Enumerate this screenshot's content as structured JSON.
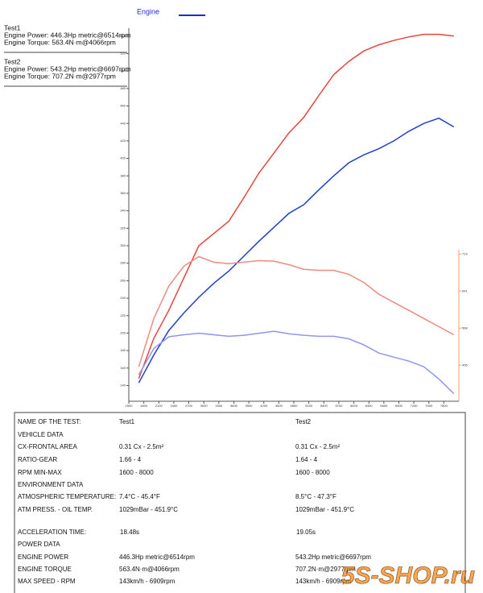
{
  "chart_data": {
    "type": "line",
    "legend_label": "Engine",
    "legend_color": "#1a2ed6",
    "x": [
      1700,
      2000,
      2300,
      2600,
      2900,
      3200,
      3500,
      3800,
      4100,
      4400,
      4700,
      5000,
      5300,
      5600,
      5900,
      6200,
      6500,
      6800,
      7100,
      7400,
      7700,
      8000
    ],
    "xlim": [
      1500,
      8100
    ],
    "xticks": [
      1500,
      1800,
      2100,
      2400,
      2700,
      3000,
      3300,
      3600,
      3900,
      4200,
      4500,
      4800,
      5100,
      5400,
      5700,
      6000,
      6300,
      6600,
      6900,
      7200,
      7500,
      7800
    ],
    "ylim": [
      122,
      549
    ],
    "yticks": [
      140,
      160,
      180,
      200,
      220,
      240,
      260,
      280,
      300,
      320,
      340,
      360,
      380,
      400,
      420,
      440,
      460,
      480,
      500,
      520,
      540
    ],
    "y2lim": [
      424,
      1159
    ],
    "y2ticks": [
      495,
      568,
      641,
      714
    ],
    "series": [
      {
        "color": "#e8453c",
        "values": [
          148,
          194,
          226,
          263,
          300,
          314,
          328,
          355,
          383,
          406,
          429,
          447,
          472,
          496,
          511,
          523,
          530,
          535,
          539,
          542,
          542,
          540
        ]
      },
      {
        "color": "#1f3fd0",
        "values": [
          143,
          175,
          203,
          223,
          241,
          257,
          271,
          288,
          305,
          321,
          337,
          347,
          364,
          380,
          395,
          404,
          411,
          420,
          431,
          440,
          446,
          436
        ]
      },
      {
        "color": "#f08a80",
        "axis": "y2",
        "values": [
          492,
          587,
          651,
          690,
          709,
          698,
          695,
          698,
          701,
          700,
          693,
          684,
          682,
          682,
          674,
          658,
          635,
          619,
          603,
          587,
          571,
          555
        ]
      },
      {
        "color": "#8e96f0",
        "axis": "y2",
        "values": [
          476,
          528,
          551,
          555,
          558,
          555,
          552,
          554,
          558,
          562,
          557,
          554,
          552,
          552,
          547,
          535,
          519,
          511,
          503,
          492,
          468,
          439
        ]
      }
    ]
  },
  "summary": [
    {
      "title": "Test1",
      "color": "#1a2ed6",
      "lines": [
        "Engine Power: 446.3Hp metric@6514rpm",
        "Engine Torque: 563.4N·m@4066rpm"
      ]
    },
    {
      "title": "Test2",
      "color": "#e8302a",
      "lines": [
        "Engine Power: 543.2Hp metric@6697rpm",
        "Engine Torque: 707.2N·m@2977rpm"
      ]
    }
  ],
  "table": {
    "rows": [
      [
        "NAME OF THE TEST:",
        "Test1",
        "Test2"
      ],
      [
        "VEHICLE DATA"
      ],
      [
        "CX-FRONTAL AREA",
        "0.31 Cx - 2.5m²",
        "0.31 Cx - 2.5m²"
      ],
      [
        "RATIO-GEAR",
        "1.66 - 4",
        "1.64 - 4"
      ],
      [
        "RPM MIN-MAX",
        "1600 - 8000",
        "1600 - 8000"
      ],
      [
        "ENVIRONMENT DATA"
      ],
      [
        "ATMOSPHERIC TEMPERATURE:",
        "7.4°C - 45.4°F",
        "8.5°C - 47.3°F"
      ],
      [
        "ATM PRESS. - OIL TEMP.",
        "1029mBar - 451.9°C",
        "1029mBar - 451.9°C"
      ],
      [
        "ACCELERATION TIME:",
        "18.48s",
        "19.05s"
      ],
      [
        "POWER DATA"
      ],
      [
        "ENGINE POWER",
        "446.3Hp metric@6514rpm",
        "543.2Hp metric@6697rpm"
      ],
      [
        "ENGINE TORQUE",
        "563.4N·m@4066rpm",
        "707.2N·m@2977rpm"
      ],
      [
        "MAX SPEED - RPM",
        "143km/h - 6909rpm",
        "143km/h - 6909rpm"
      ]
    ]
  },
  "watermark": "5S-SHOP.ru"
}
